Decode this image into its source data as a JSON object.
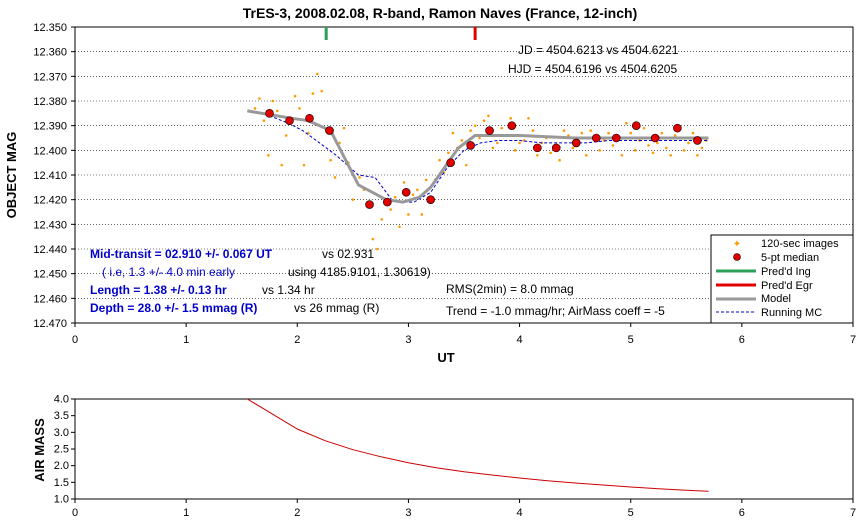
{
  "title": "TrES-3, 2008.02.08, R-band, Ramon Naves (France, 12-inch)",
  "colors": {
    "model": "#999999",
    "median": "#e00000",
    "raw": "#ff9900",
    "mc": "#0000cc",
    "ingress": "#2ca05a",
    "egress": "#e00000",
    "airmass": "#cc0000"
  },
  "chart_data": [
    {
      "type": "scatter",
      "title": "TrES-3, 2008.02.08, R-band, Ramon Naves (France, 12-inch)",
      "xlabel": "UT",
      "ylabel": "OBJECT MAG",
      "xlim": [
        0,
        7
      ],
      "ylim": [
        12.47,
        12.35
      ],
      "inverted_y": true,
      "x_ticks": [
        "0",
        "1",
        "2",
        "3",
        "4",
        "5",
        "6",
        "7"
      ],
      "y_ticks": [
        "12.350",
        "12.360",
        "12.370",
        "12.380",
        "12.390",
        "12.400",
        "12.410",
        "12.420",
        "12.430",
        "12.440",
        "12.450",
        "12.460",
        "12.470"
      ],
      "markers": {
        "ingress_x": 2.26,
        "egress_x": 3.6
      },
      "series": [
        {
          "name": "120-sec images",
          "x": [
            1.62,
            1.66,
            1.7,
            1.74,
            1.78,
            1.82,
            1.86,
            1.9,
            1.94,
            1.98,
            2.02,
            2.06,
            2.1,
            2.14,
            2.18,
            2.22,
            2.26,
            2.3,
            2.34,
            2.38,
            2.42,
            2.46,
            2.5,
            2.56,
            2.6,
            2.64,
            2.68,
            2.72,
            2.76,
            2.8,
            2.84,
            2.88,
            2.92,
            2.96,
            3.0,
            3.04,
            3.08,
            3.12,
            3.16,
            3.2,
            3.24,
            3.28,
            3.32,
            3.36,
            3.4,
            3.44,
            3.48,
            3.52,
            3.56,
            3.6,
            3.64,
            3.68,
            3.72,
            3.76,
            3.8,
            3.84,
            3.88,
            3.92,
            3.96,
            4.0,
            4.04,
            4.08,
            4.12,
            4.16,
            4.2,
            4.24,
            4.28,
            4.32,
            4.36,
            4.4,
            4.44,
            4.48,
            4.52,
            4.56,
            4.6,
            4.64,
            4.68,
            4.72,
            4.76,
            4.8,
            4.84,
            4.88,
            4.92,
            4.96,
            5.0,
            5.04,
            5.08,
            5.12,
            5.16,
            5.2,
            5.24,
            5.28,
            5.32,
            5.36,
            5.4,
            5.44,
            5.48,
            5.52,
            5.56,
            5.6,
            5.64,
            5.68
          ],
          "y": [
            12.383,
            12.379,
            12.388,
            12.402,
            12.38,
            12.384,
            12.406,
            12.394,
            12.389,
            12.378,
            12.383,
            12.406,
            12.393,
            12.377,
            12.369,
            12.376,
            12.392,
            12.404,
            12.411,
            12.397,
            12.391,
            12.405,
            12.42,
            12.411,
            12.416,
            12.423,
            12.436,
            12.44,
            12.428,
            12.421,
            12.424,
            12.419,
            12.431,
            12.413,
            12.426,
            12.418,
            12.416,
            12.426,
            12.412,
            12.415,
            12.412,
            12.404,
            12.409,
            12.401,
            12.393,
            12.399,
            12.396,
            12.406,
            12.392,
            12.39,
            12.395,
            12.388,
            12.386,
            12.399,
            12.397,
            12.391,
            12.394,
            12.387,
            12.4,
            12.397,
            12.396,
            12.387,
            12.392,
            12.402,
            12.397,
            12.395,
            12.401,
            12.398,
            12.404,
            12.392,
            12.394,
            12.399,
            12.397,
            12.393,
            12.402,
            12.392,
            12.395,
            12.4,
            12.396,
            12.393,
            12.398,
            12.395,
            12.402,
            12.389,
            12.393,
            12.4,
            12.396,
            12.391,
            12.398,
            12.401,
            12.397,
            12.393,
            12.399,
            12.402,
            12.394,
            12.391,
            12.4,
            12.397,
            12.393,
            12.402,
            12.399,
            12.396
          ]
        },
        {
          "name": "5-pt median",
          "x": [
            1.75,
            1.93,
            2.11,
            2.29,
            2.65,
            2.81,
            2.98,
            3.2,
            3.38,
            3.56,
            3.73,
            3.93,
            4.16,
            4.33,
            4.51,
            4.69,
            4.87,
            5.05,
            5.22,
            5.42,
            5.6
          ],
          "y": [
            12.385,
            12.388,
            12.387,
            12.392,
            12.422,
            12.421,
            12.417,
            12.42,
            12.405,
            12.398,
            12.392,
            12.39,
            12.399,
            12.399,
            12.397,
            12.395,
            12.395,
            12.39,
            12.395,
            12.391,
            12.396
          ]
        },
        {
          "name": "Model",
          "x": [
            1.55,
            1.95,
            2.1,
            2.3,
            2.55,
            2.8,
            2.95,
            3.1,
            3.2,
            3.45,
            3.6,
            4.0,
            4.5,
            5.0,
            5.7
          ],
          "y": [
            12.384,
            12.387,
            12.388,
            12.392,
            12.414,
            12.42,
            12.421,
            12.419,
            12.415,
            12.399,
            12.394,
            12.394,
            12.395,
            12.395,
            12.395
          ]
        },
        {
          "name": "Running MC",
          "x": [
            1.75,
            1.92,
            2.05,
            2.2,
            2.35,
            2.55,
            2.7,
            2.85,
            2.95,
            3.05,
            3.2,
            3.35,
            3.5,
            3.65,
            3.8,
            4.0,
            4.2,
            4.4,
            4.6,
            4.8,
            5.0,
            5.2,
            5.4,
            5.6,
            5.7
          ],
          "y": [
            12.386,
            12.389,
            12.392,
            12.397,
            12.402,
            12.41,
            12.411,
            12.42,
            12.421,
            12.421,
            12.417,
            12.407,
            12.4,
            12.397,
            12.396,
            12.396,
            12.397,
            12.397,
            12.397,
            12.396,
            12.396,
            12.396,
            12.396,
            12.396,
            12.396
          ]
        }
      ],
      "legend": {
        "placement": "bottom-right",
        "entries": [
          "120-sec images",
          "5-pt median",
          "Pred'd Ing",
          "Pred'd Egr",
          "Model",
          "Running MC"
        ]
      },
      "annotations": {
        "jd": "JD = 4504.6213 vs 4504.6221",
        "hjd": "HJD = 4504.6196 vs 4504.6205",
        "mid_transit": "Mid-transit = 02.910 +/- 0.067 UT",
        "mid_transit_vs": "vs 02.931",
        "early_a": "( i.e, 1.3 +/- 4.0 min early",
        "early_b": "using 4185.9101, 1.30619)",
        "length": "Length = 1.38 +/- 0.13 hr",
        "length_vs": "vs 1.34 hr",
        "depth": "Depth = 28.0 +/- 1.5 mmag (R)",
        "depth_vs": "vs 26  mmag (R)",
        "rms": "RMS(2min) = 8.0 mmag",
        "trend": "Trend = -1.0 mmag/hr; AirMass coeff = -5"
      }
    },
    {
      "type": "line",
      "ylabel": "AIR MASS",
      "xlim": [
        0,
        7
      ],
      "ylim": [
        1.0,
        4.0
      ],
      "x_ticks": [
        "0",
        "1",
        "2",
        "3",
        "4",
        "5",
        "6",
        "7"
      ],
      "y_ticks": [
        "1.0",
        "1.5",
        "2.0",
        "2.5",
        "3.0",
        "3.5",
        "4.0"
      ],
      "series": [
        {
          "x": [
            1.55,
            1.75,
            2.0,
            2.25,
            2.5,
            2.75,
            3.0,
            3.25,
            3.5,
            3.75,
            4.0,
            4.25,
            4.5,
            4.75,
            5.0,
            5.25,
            5.5,
            5.7
          ],
          "y": [
            4.0,
            3.6,
            3.1,
            2.75,
            2.48,
            2.27,
            2.09,
            1.94,
            1.82,
            1.72,
            1.63,
            1.55,
            1.48,
            1.42,
            1.36,
            1.31,
            1.26,
            1.23
          ]
        }
      ]
    }
  ]
}
